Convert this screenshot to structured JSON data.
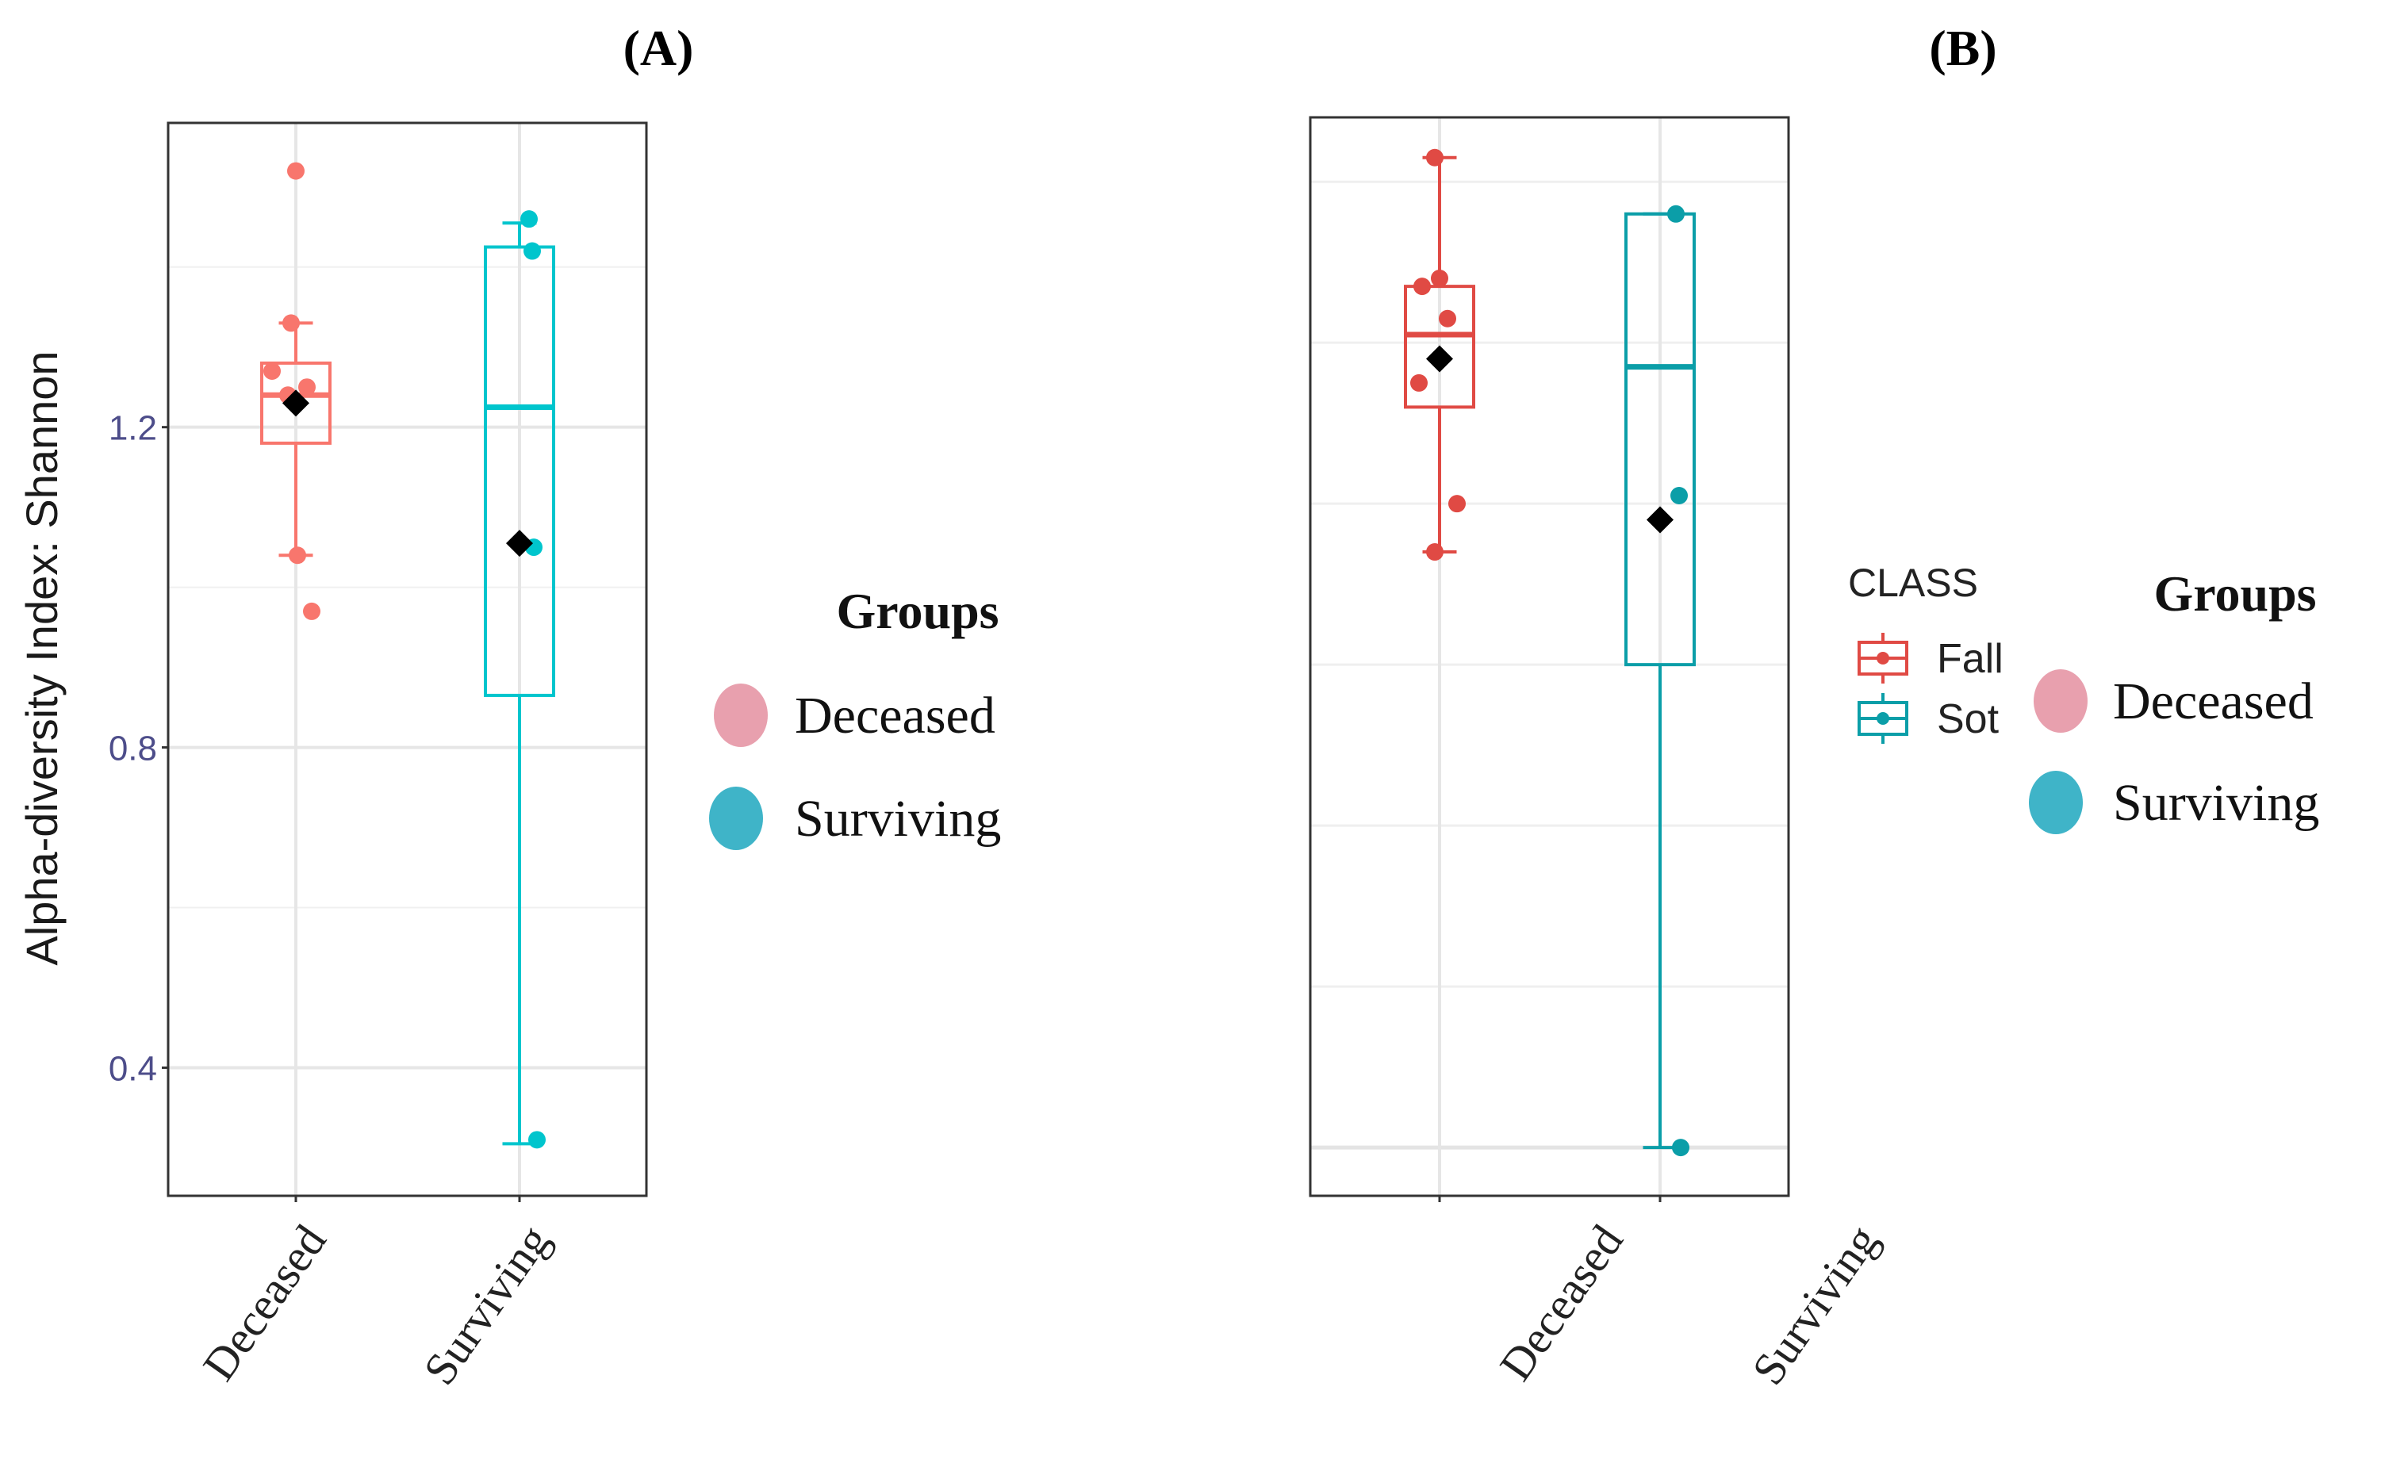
{
  "chart_data": [
    {
      "type": "box",
      "panel_label": "(A)",
      "ylabel": "Alpha-diversity Index: Shannon",
      "ylim": [
        0.24,
        1.58
      ],
      "yticks": [
        0.4,
        0.8,
        1.2
      ],
      "ytick_labels": [
        "0.4",
        "0.8",
        "1.2"
      ],
      "categories": [
        "Deceased",
        "Surviving"
      ],
      "grid": true,
      "colors": {
        "Deceased": "#f8766d",
        "Surviving": "#00c5cd"
      },
      "boxes": [
        {
          "group": "Deceased",
          "whisker_low": 1.04,
          "q1": 1.18,
          "median": 1.24,
          "q3": 1.28,
          "whisker_high": 1.33,
          "mean": 1.23,
          "points": [
            1.52,
            1.33,
            1.27,
            1.25,
            1.24,
            1.04,
            0.97
          ]
        },
        {
          "group": "Surviving",
          "whisker_low": 0.305,
          "q1": 0.865,
          "median": 1.225,
          "q3": 1.425,
          "whisker_high": 1.455,
          "mean": 1.055,
          "points": [
            1.46,
            1.42,
            1.05,
            0.31
          ]
        }
      ],
      "legend": {
        "title": "Groups",
        "entries": [
          {
            "label": "Deceased",
            "color": "#e8a0ae"
          },
          {
            "label": "Surviving",
            "color": "#3fb4c8"
          }
        ]
      }
    },
    {
      "type": "box",
      "panel_label": "(B)",
      "ylim": [
        0.24,
        1.58
      ],
      "categories": [
        "Deceased",
        "Surviving"
      ],
      "grid": true,
      "colors": {
        "Deceased": "#e04a44",
        "Surviving": "#0b9ea8"
      },
      "boxes": [
        {
          "group": "Deceased",
          "whisker_low": 1.04,
          "q1": 1.22,
          "median": 1.31,
          "q3": 1.37,
          "whisker_high": 1.53,
          "mean": 1.28,
          "points": [
            1.53,
            1.38,
            1.37,
            1.33,
            1.25,
            1.1,
            1.04
          ]
        },
        {
          "group": "Surviving",
          "whisker_low": 0.3,
          "q1": 0.9,
          "median": 1.27,
          "q3": 1.46,
          "whisker_high": 1.46,
          "mean": 1.08,
          "points": [
            1.46,
            1.11,
            0.3
          ]
        }
      ],
      "legend_class": {
        "title": "CLASS",
        "entries": [
          {
            "label": "Fall",
            "color": "#e04a44"
          },
          {
            "label": "Sot",
            "color": "#0b9ea8"
          }
        ]
      },
      "legend": {
        "title": "Groups",
        "entries": [
          {
            "label": "Deceased",
            "color": "#e8a0ae"
          },
          {
            "label": "Surviving",
            "color": "#3fb4c8"
          }
        ]
      }
    }
  ]
}
